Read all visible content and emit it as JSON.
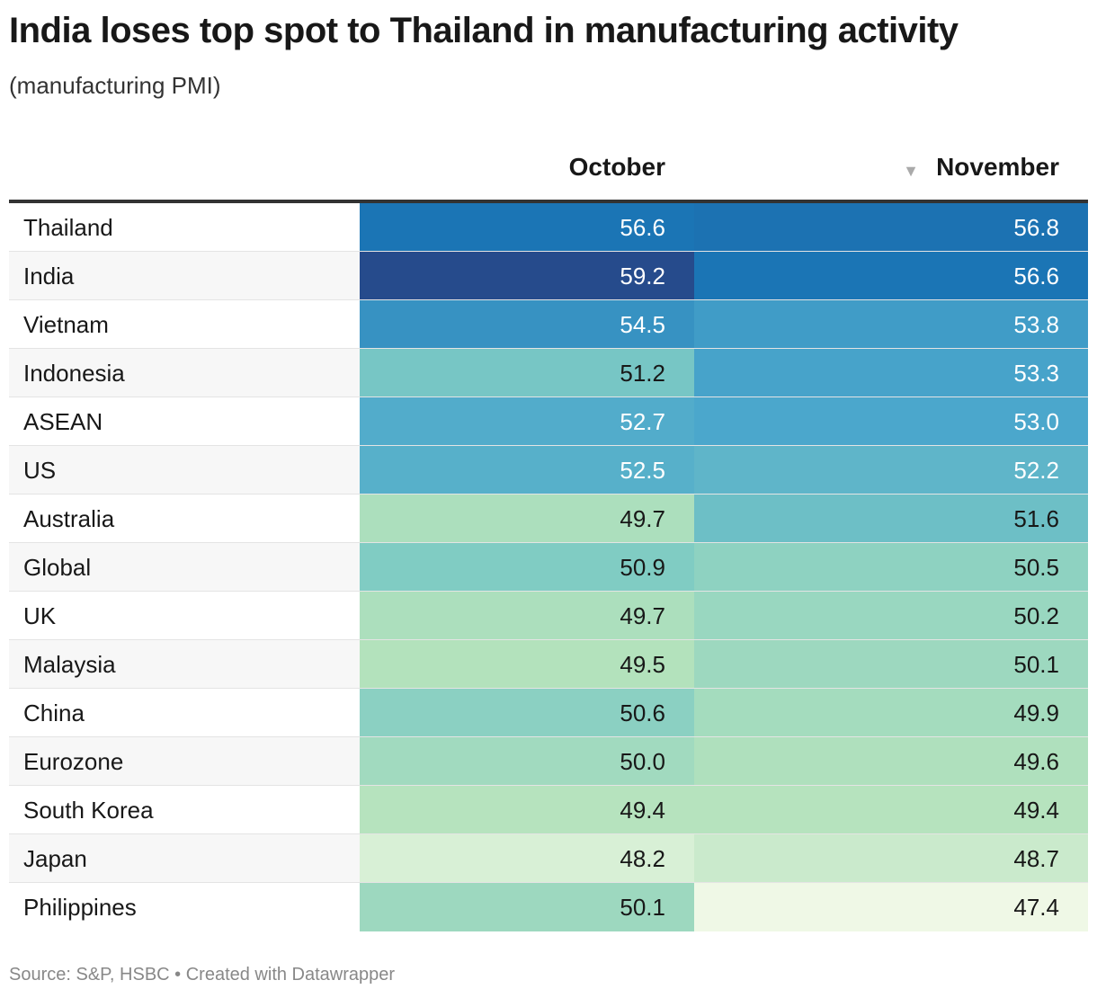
{
  "title": "India loses top spot to Thailand in manufacturing activity",
  "subtitle": "(manufacturing PMI)",
  "footer": "Source: S&P, HSBC • Created with Datawrapper",
  "chart_data": {
    "type": "table",
    "columns": [
      "October",
      "November"
    ],
    "sorted_by": "November",
    "sort_order": "descending",
    "rows": [
      {
        "label": "Thailand",
        "values": [
          56.6,
          56.8
        ]
      },
      {
        "label": "India",
        "values": [
          59.2,
          56.6
        ]
      },
      {
        "label": "Vietnam",
        "values": [
          54.5,
          53.8
        ]
      },
      {
        "label": "Indonesia",
        "values": [
          51.2,
          53.3
        ]
      },
      {
        "label": "ASEAN",
        "values": [
          52.7,
          53.0
        ]
      },
      {
        "label": "US",
        "values": [
          52.5,
          52.2
        ]
      },
      {
        "label": "Australia",
        "values": [
          49.7,
          51.6
        ]
      },
      {
        "label": "Global",
        "values": [
          50.9,
          50.5
        ]
      },
      {
        "label": "UK",
        "values": [
          49.7,
          50.2
        ]
      },
      {
        "label": "Malaysia",
        "values": [
          49.5,
          50.1
        ]
      },
      {
        "label": "China",
        "values": [
          50.6,
          49.9
        ]
      },
      {
        "label": "Eurozone",
        "values": [
          50.0,
          49.6
        ]
      },
      {
        "label": "South Korea",
        "values": [
          49.4,
          49.4
        ]
      },
      {
        "label": "Japan",
        "values": [
          48.2,
          48.7
        ]
      },
      {
        "label": "Philippines",
        "values": [
          50.1,
          47.4
        ]
      }
    ],
    "color_scale": {
      "type": "heatmap",
      "colors": [
        "#eff8e6",
        "#b3e2bc",
        "#7ccac4",
        "#4ba7cc",
        "#1b75b5",
        "#264b8c"
      ]
    }
  }
}
